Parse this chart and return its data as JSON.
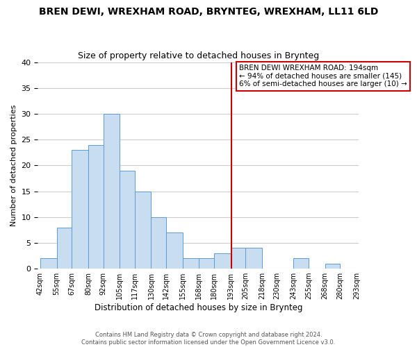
{
  "title": "BREN DEWI, WREXHAM ROAD, BRYNTEG, WREXHAM, LL11 6LD",
  "subtitle": "Size of property relative to detached houses in Brynteg",
  "xlabel": "Distribution of detached houses by size in Brynteg",
  "ylabel": "Number of detached properties",
  "bin_edges": [
    42,
    55,
    67,
    80,
    92,
    105,
    117,
    130,
    142,
    155,
    168,
    180,
    193,
    205,
    218,
    230,
    243,
    255,
    268,
    280,
    293
  ],
  "counts": [
    2,
    8,
    23,
    24,
    30,
    19,
    15,
    10,
    7,
    2,
    2,
    3,
    4,
    4,
    0,
    0,
    2,
    0,
    1,
    0
  ],
  "bar_color": "#c8ddf0",
  "bar_edge_color": "#5b9bd5",
  "vline_x": 194,
  "vline_color": "#cc0000",
  "ylim": [
    0,
    40
  ],
  "yticks": [
    0,
    5,
    10,
    15,
    20,
    25,
    30,
    35,
    40
  ],
  "annotation_title": "BREN DEWI WREXHAM ROAD: 194sqm",
  "annotation_line1": "← 94% of detached houses are smaller (145)",
  "annotation_line2": "6% of semi-detached houses are larger (10) →",
  "annotation_box_facecolor": "#ffffff",
  "annotation_box_edgecolor": "#cc0000",
  "bg_color": "#ffffff",
  "plot_bg_color": "#ffffff",
  "grid_color": "#cccccc",
  "footer_line1": "Contains HM Land Registry data © Crown copyright and database right 2024.",
  "footer_line2": "Contains public sector information licensed under the Open Government Licence v3.0."
}
